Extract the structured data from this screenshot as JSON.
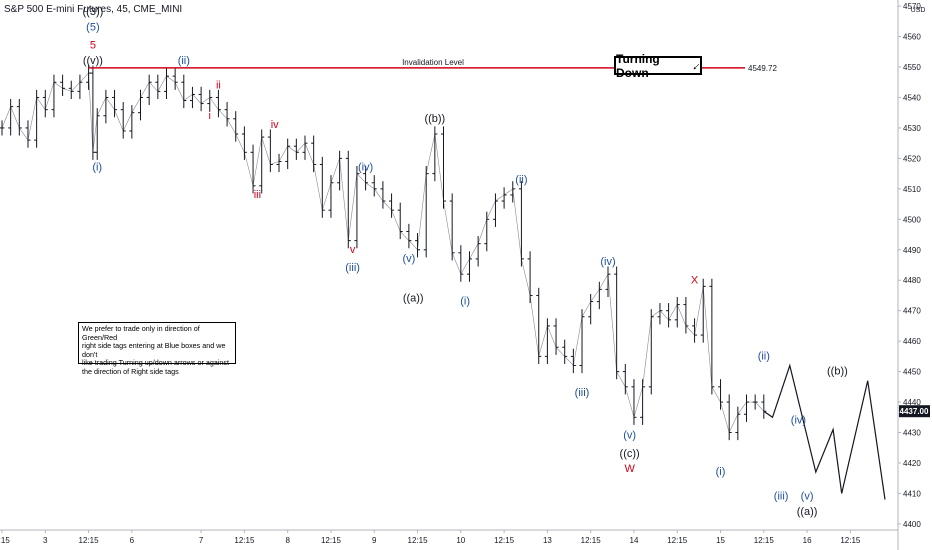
{
  "header": {
    "title": "S&P 500 E-mini Futures, 45, CME_MINI"
  },
  "note": {
    "lines": [
      "We prefer to trade only in direction of Green/Red",
      "right side tags entering at Blue boxes and we don't",
      "like trading Turning up/down arrows or against",
      "the direction of Right side tags"
    ]
  },
  "turning_box": {
    "label": "Turning Down"
  },
  "chart_data": {
    "type": "line",
    "yunit": "USD",
    "ylim": [
      4398,
      4572
    ],
    "y_ticks": [
      4400,
      4410,
      4420,
      4430,
      4440,
      4450,
      4460,
      4470,
      4480,
      4490,
      4500,
      4510,
      4520,
      4530,
      4540,
      4550,
      4560,
      4570
    ],
    "x_ticks": [
      {
        "label": "2:15",
        "x": 0
      },
      {
        "label": "3",
        "x": 5
      },
      {
        "label": "12:15",
        "x": 10
      },
      {
        "label": "6",
        "x": 15
      },
      {
        "label": "7",
        "x": 23
      },
      {
        "label": "12:15",
        "x": 28
      },
      {
        "label": "8",
        "x": 33
      },
      {
        "label": "12:15",
        "x": 38
      },
      {
        "label": "9",
        "x": 43
      },
      {
        "label": "12:15",
        "x": 48
      },
      {
        "label": "10",
        "x": 53
      },
      {
        "label": "12:15",
        "x": 58
      },
      {
        "label": "13",
        "x": 63
      },
      {
        "label": "12:15",
        "x": 68
      },
      {
        "label": "14",
        "x": 73
      },
      {
        "label": "12:15",
        "x": 78
      },
      {
        "label": "15",
        "x": 83
      },
      {
        "label": "12:15",
        "x": 88
      },
      {
        "label": "16",
        "x": 93
      },
      {
        "label": "12:15",
        "x": 98
      }
    ],
    "price": [
      [
        0,
        4530
      ],
      [
        1,
        4537
      ],
      [
        2,
        4530
      ],
      [
        3,
        4526
      ],
      [
        4,
        4540
      ],
      [
        5,
        4536
      ],
      [
        6,
        4545
      ],
      [
        7,
        4543
      ],
      [
        8,
        4542
      ],
      [
        9,
        4545
      ],
      [
        10,
        4548
      ],
      [
        10.5,
        4522
      ],
      [
        11,
        4534
      ],
      [
        12,
        4540
      ],
      [
        13,
        4536
      ],
      [
        14,
        4529
      ],
      [
        15,
        4535
      ],
      [
        16,
        4540
      ],
      [
        17,
        4545
      ],
      [
        18,
        4542
      ],
      [
        19,
        4547
      ],
      [
        20,
        4545
      ],
      [
        21,
        4539
      ],
      [
        22,
        4541
      ],
      [
        23,
        4538
      ],
      [
        24,
        4540
      ],
      [
        25,
        4536
      ],
      [
        26,
        4533
      ],
      [
        27,
        4528
      ],
      [
        28,
        4522
      ],
      [
        29,
        4511
      ],
      [
        30,
        4527
      ],
      [
        31,
        4518
      ],
      [
        32,
        4519
      ],
      [
        33,
        4524
      ],
      [
        34,
        4522
      ],
      [
        35,
        4525
      ],
      [
        36,
        4518
      ],
      [
        37,
        4503
      ],
      [
        38,
        4512
      ],
      [
        39,
        4520
      ],
      [
        40,
        4493
      ],
      [
        41,
        4515
      ],
      [
        42,
        4512
      ],
      [
        43,
        4510
      ],
      [
        44,
        4506
      ],
      [
        45,
        4503
      ],
      [
        46,
        4496
      ],
      [
        47,
        4493
      ],
      [
        48,
        4490
      ],
      [
        49,
        4515
      ],
      [
        50,
        4528
      ],
      [
        51,
        4506
      ],
      [
        52,
        4489
      ],
      [
        53,
        4482
      ],
      [
        54,
        4487
      ],
      [
        55,
        4492
      ],
      [
        56,
        4500
      ],
      [
        57,
        4506
      ],
      [
        58,
        4508
      ],
      [
        59,
        4510
      ],
      [
        60,
        4487
      ],
      [
        61,
        4475
      ],
      [
        62,
        4455
      ],
      [
        63,
        4465
      ],
      [
        64,
        4458
      ],
      [
        65,
        4455
      ],
      [
        66,
        4452
      ],
      [
        67,
        4468
      ],
      [
        68,
        4473
      ],
      [
        69,
        4477
      ],
      [
        70,
        4482
      ],
      [
        71,
        4450
      ],
      [
        72,
        4445
      ],
      [
        73,
        4435
      ],
      [
        74,
        4445
      ],
      [
        75,
        4468
      ],
      [
        76,
        4470
      ],
      [
        77,
        4467
      ],
      [
        78,
        4472
      ],
      [
        79,
        4465
      ],
      [
        80,
        4462
      ],
      [
        81,
        4478
      ],
      [
        82,
        4445
      ],
      [
        83,
        4440
      ],
      [
        84,
        4430
      ],
      [
        85,
        4436
      ],
      [
        86,
        4440
      ],
      [
        87,
        4440
      ],
      [
        88,
        4437
      ]
    ],
    "price_line": {
      "value": 4549.72,
      "label": "4549.72",
      "name": "Invalidation Level",
      "color": "#d0021b",
      "x_start": 10
    },
    "last_price": {
      "value": 4437.0,
      "label": "4437.00"
    },
    "projection": [
      [
        88,
        4437
      ],
      [
        89,
        4435
      ],
      [
        91,
        4452
      ],
      [
        94,
        4417
      ],
      [
        96,
        4431
      ],
      [
        97,
        4410
      ],
      [
        100,
        4447
      ],
      [
        102,
        4408
      ]
    ],
    "wave_labels": [
      {
        "text": "((3))",
        "x": 10.5,
        "y": 4567,
        "color": "#131722"
      },
      {
        "text": "(5)",
        "x": 10.5,
        "y": 4562,
        "color": "#1f4e9c"
      },
      {
        "text": "5",
        "x": 10.5,
        "y": 4556,
        "color": "#d0021b"
      },
      {
        "text": "((v))",
        "x": 10.5,
        "y": 4551,
        "color": "#131722"
      },
      {
        "text": "(i)",
        "x": 11,
        "y": 4516,
        "color": "#1f4e9c"
      },
      {
        "text": "(ii)",
        "x": 21,
        "y": 4551,
        "color": "#1f4e9c"
      },
      {
        "text": "ii",
        "x": 25,
        "y": 4543,
        "color": "#d0021b"
      },
      {
        "text": "i",
        "x": 24,
        "y": 4533,
        "color": "#d0021b"
      },
      {
        "text": "iv",
        "x": 31.5,
        "y": 4530,
        "color": "#d0021b"
      },
      {
        "text": "iii",
        "x": 29.5,
        "y": 4507,
        "color": "#d0021b"
      },
      {
        "text": "v",
        "x": 40.5,
        "y": 4489,
        "color": "#d0021b"
      },
      {
        "text": "(iv)",
        "x": 42,
        "y": 4516,
        "color": "#1f4e9c"
      },
      {
        "text": "(iii)",
        "x": 40.5,
        "y": 4483,
        "color": "#1f4e9c"
      },
      {
        "text": "(v)",
        "x": 47,
        "y": 4486,
        "color": "#1f4e9c"
      },
      {
        "text": "((a))",
        "x": 47.5,
        "y": 4473,
        "color": "#131722"
      },
      {
        "text": "((b))",
        "x": 50,
        "y": 4532,
        "color": "#131722"
      },
      {
        "text": "(ii)",
        "x": 60,
        "y": 4512,
        "color": "#1f4e9c"
      },
      {
        "text": "(i)",
        "x": 53.5,
        "y": 4472,
        "color": "#1f4e9c"
      },
      {
        "text": "(iv)",
        "x": 70,
        "y": 4485,
        "color": "#1f4e9c"
      },
      {
        "text": "(iii)",
        "x": 67,
        "y": 4442,
        "color": "#1f4e9c"
      },
      {
        "text": "(v)",
        "x": 72.5,
        "y": 4428,
        "color": "#1f4e9c"
      },
      {
        "text": "((c))",
        "x": 72.5,
        "y": 4422,
        "color": "#131722"
      },
      {
        "text": "W",
        "x": 72.5,
        "y": 4417,
        "color": "#d0021b"
      },
      {
        "text": "X",
        "x": 80,
        "y": 4479,
        "color": "#d0021b"
      },
      {
        "text": "(i)",
        "x": 83,
        "y": 4416,
        "color": "#1f4e9c"
      },
      {
        "text": "(ii)",
        "x": 88,
        "y": 4454,
        "color": "#1f4e9c"
      },
      {
        "text": "(iii)",
        "x": 90,
        "y": 4408,
        "color": "#1f4e9c"
      },
      {
        "text": "(iv)",
        "x": 92,
        "y": 4433,
        "color": "#1f4e9c"
      },
      {
        "text": "(v)",
        "x": 93,
        "y": 4408,
        "color": "#1f4e9c"
      },
      {
        "text": "((a))",
        "x": 93,
        "y": 4403,
        "color": "#131722"
      },
      {
        "text": "((b))",
        "x": 96.5,
        "y": 4449,
        "color": "#131722"
      }
    ],
    "grid": false
  }
}
